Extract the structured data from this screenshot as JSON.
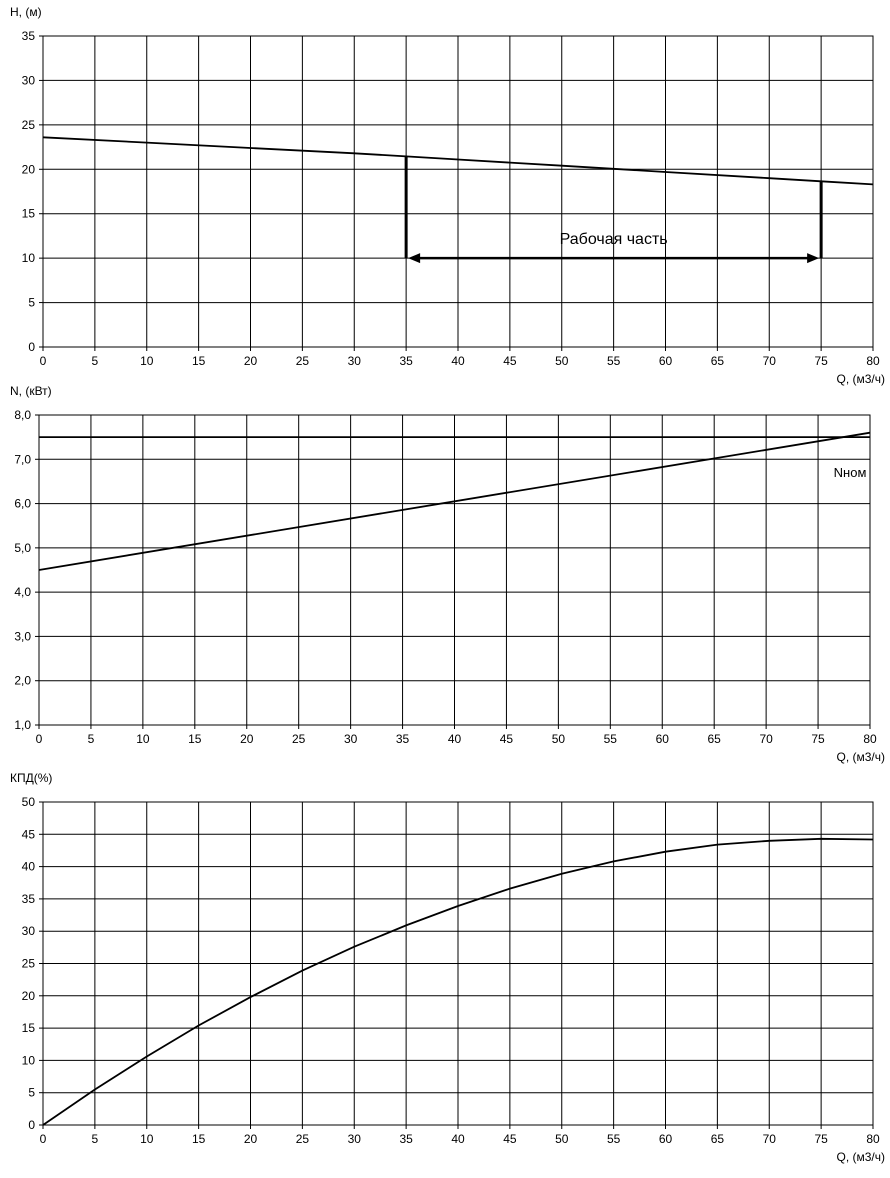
{
  "chart_data": [
    {
      "type": "line",
      "ylabel": "H, (м)",
      "xlabel": "Q, (м3/ч)",
      "xlim": [
        0,
        80
      ],
      "ylim": [
        0,
        35
      ],
      "x_ticks": [
        "0",
        "5",
        "10",
        "15",
        "20",
        "25",
        "30",
        "35",
        "40",
        "45",
        "50",
        "55",
        "60",
        "65",
        "70",
        "75",
        "80"
      ],
      "y_ticks": [
        "0",
        "5",
        "10",
        "15",
        "20",
        "25",
        "30",
        "35"
      ],
      "grid": true,
      "series": [
        {
          "x": [
            0,
            10,
            20,
            30,
            35,
            40,
            50,
            60,
            70,
            75,
            80
          ],
          "y": [
            23.6,
            23.0,
            22.4,
            21.8,
            21.45,
            21.1,
            20.4,
            19.7,
            19.0,
            18.65,
            18.3
          ]
        }
      ],
      "annotation": {
        "label": "Рабочая часть",
        "x_start": 35,
        "x_end": 75,
        "y": 10,
        "y_top_start": 21.45,
        "y_top_end": 18.65
      }
    },
    {
      "type": "line",
      "ylabel": "N, (кВт)",
      "xlabel": "Q, (м3/ч)",
      "xlim": [
        0,
        80
      ],
      "ylim": [
        1.0,
        8.0
      ],
      "x_ticks": [
        "0",
        "5",
        "10",
        "15",
        "20",
        "25",
        "30",
        "35",
        "40",
        "45",
        "50",
        "55",
        "60",
        "65",
        "70",
        "75",
        "80"
      ],
      "y_ticks": [
        "1,0",
        "2,0",
        "3,0",
        "4,0",
        "5,0",
        "6,0",
        "7,0",
        "8,0"
      ],
      "grid": true,
      "series": [
        {
          "x": [
            0,
            80
          ],
          "y": [
            4.5,
            7.6
          ]
        },
        {
          "x": [
            0,
            80
          ],
          "y": [
            7.5,
            7.5
          ]
        }
      ],
      "annotation": {
        "label": "Nном",
        "x": 76.5,
        "y": 6.6
      }
    },
    {
      "type": "line",
      "ylabel": "КПД(%)",
      "xlabel": "Q, (м3/ч)",
      "xlim": [
        0,
        80
      ],
      "ylim": [
        0,
        50
      ],
      "x_ticks": [
        "0",
        "5",
        "10",
        "15",
        "20",
        "25",
        "30",
        "35",
        "40",
        "45",
        "50",
        "55",
        "60",
        "65",
        "70",
        "75",
        "80"
      ],
      "y_ticks": [
        "0",
        "5",
        "10",
        "15",
        "20",
        "25",
        "30",
        "35",
        "40",
        "45",
        "50"
      ],
      "grid": true,
      "series": [
        {
          "x": [
            0,
            5,
            10,
            15,
            20,
            25,
            30,
            35,
            40,
            45,
            50,
            55,
            60,
            65,
            70,
            75,
            80
          ],
          "y": [
            0,
            5.5,
            10.6,
            15.4,
            19.8,
            23.9,
            27.6,
            30.9,
            33.9,
            36.6,
            38.9,
            40.8,
            42.3,
            43.4,
            44.0,
            44.3,
            44.2
          ]
        }
      ]
    }
  ]
}
